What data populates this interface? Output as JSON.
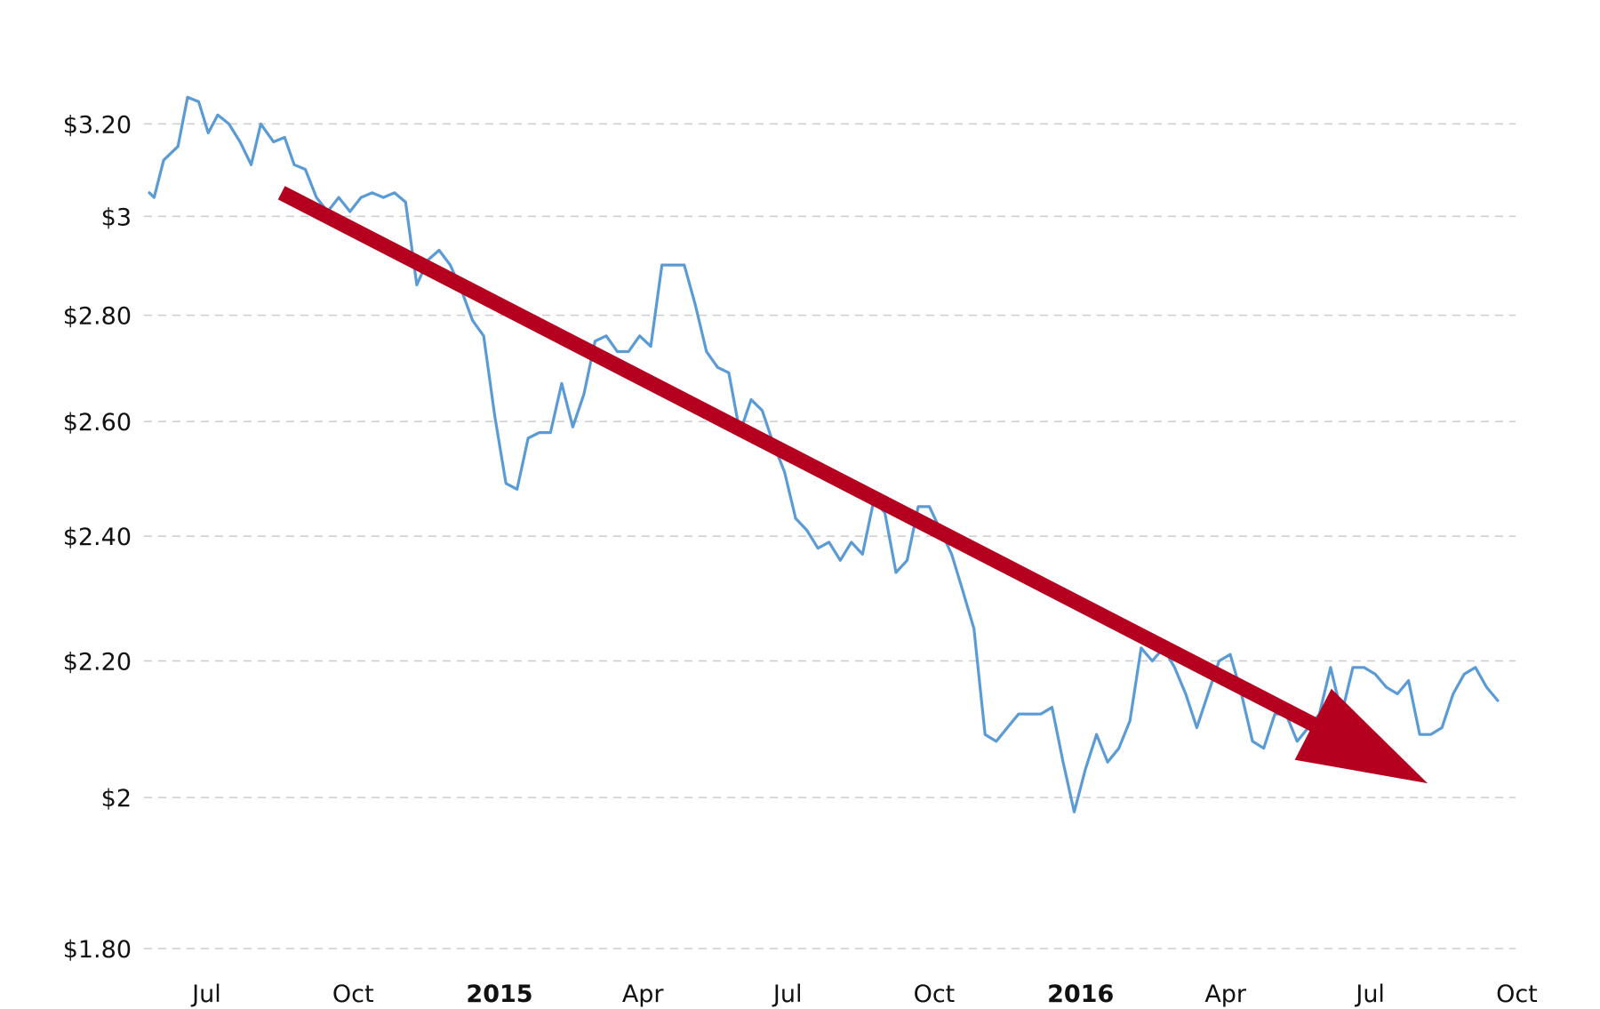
{
  "chart_data": {
    "type": "line",
    "title": "",
    "xlabel": "",
    "ylabel": "",
    "y_scale": "log",
    "ylim": [
      1.78,
      3.32
    ],
    "grid": true,
    "y_ticks": [
      {
        "value": 3.2,
        "label": "$3.20"
      },
      {
        "value": 3.0,
        "label": "$3"
      },
      {
        "value": 2.8,
        "label": "$2.80"
      },
      {
        "value": 2.6,
        "label": "$2.60"
      },
      {
        "value": 2.4,
        "label": "$2.40"
      },
      {
        "value": 2.2,
        "label": "$2.20"
      },
      {
        "value": 2.0,
        "label": "$2"
      },
      {
        "value": 1.8,
        "label": "$1.80"
      }
    ],
    "x_ticks": [
      {
        "date": "2014-07-01",
        "label": "Jul",
        "bold": false
      },
      {
        "date": "2014-10-01",
        "label": "Oct",
        "bold": false
      },
      {
        "date": "2015-01-01",
        "label": "2015",
        "bold": true
      },
      {
        "date": "2015-04-01",
        "label": "Apr",
        "bold": false
      },
      {
        "date": "2015-07-01",
        "label": "Jul",
        "bold": false
      },
      {
        "date": "2015-10-01",
        "label": "Oct",
        "bold": false
      },
      {
        "date": "2016-01-01",
        "label": "2016",
        "bold": true
      },
      {
        "date": "2016-04-01",
        "label": "Apr",
        "bold": false
      },
      {
        "date": "2016-07-01",
        "label": "Jul",
        "bold": false
      },
      {
        "date": "2016-10-01",
        "label": "Oct",
        "bold": false
      }
    ],
    "xlim": [
      "2014-05-26",
      "2016-10-03"
    ],
    "colors": {
      "line": "#5b9bd5",
      "arrow": "#b5001f",
      "grid": "#cccccc"
    },
    "series": [
      {
        "color": "#5b9bd5",
        "points": [
          [
            "2014-05-26",
            3.05
          ],
          [
            "2014-05-29",
            3.04
          ],
          [
            "2014-06-04",
            3.12
          ],
          [
            "2014-06-13",
            3.15
          ],
          [
            "2014-06-19",
            3.26
          ],
          [
            "2014-06-26",
            3.25
          ],
          [
            "2014-07-02",
            3.18
          ],
          [
            "2014-07-08",
            3.22
          ],
          [
            "2014-07-15",
            3.2
          ],
          [
            "2014-07-22",
            3.16
          ],
          [
            "2014-07-29",
            3.11
          ],
          [
            "2014-08-04",
            3.2
          ],
          [
            "2014-08-12",
            3.16
          ],
          [
            "2014-08-19",
            3.17
          ],
          [
            "2014-08-25",
            3.11
          ],
          [
            "2014-09-01",
            3.1
          ],
          [
            "2014-09-08",
            3.04
          ],
          [
            "2014-09-15",
            3.01
          ],
          [
            "2014-09-22",
            3.04
          ],
          [
            "2014-09-29",
            3.01
          ],
          [
            "2014-10-06",
            3.04
          ],
          [
            "2014-10-13",
            3.05
          ],
          [
            "2014-10-20",
            3.04
          ],
          [
            "2014-10-27",
            3.05
          ],
          [
            "2014-11-03",
            3.03
          ],
          [
            "2014-11-10",
            2.86
          ],
          [
            "2014-11-17",
            2.91
          ],
          [
            "2014-11-24",
            2.93
          ],
          [
            "2014-12-01",
            2.9
          ],
          [
            "2014-12-08",
            2.85
          ],
          [
            "2014-12-15",
            2.79
          ],
          [
            "2014-12-22",
            2.76
          ],
          [
            "2014-12-29",
            2.61
          ],
          [
            "2015-01-05",
            2.49
          ],
          [
            "2015-01-12",
            2.48
          ],
          [
            "2015-01-19",
            2.57
          ],
          [
            "2015-01-26",
            2.58
          ],
          [
            "2015-02-02",
            2.58
          ],
          [
            "2015-02-09",
            2.67
          ],
          [
            "2015-02-16",
            2.59
          ],
          [
            "2015-02-23",
            2.65
          ],
          [
            "2015-03-02",
            2.75
          ],
          [
            "2015-03-09",
            2.76
          ],
          [
            "2015-03-16",
            2.73
          ],
          [
            "2015-03-23",
            2.73
          ],
          [
            "2015-03-30",
            2.76
          ],
          [
            "2015-04-06",
            2.74
          ],
          [
            "2015-04-13",
            2.9
          ],
          [
            "2015-04-20",
            2.9
          ],
          [
            "2015-04-27",
            2.9
          ],
          [
            "2015-05-04",
            2.82
          ],
          [
            "2015-05-11",
            2.73
          ],
          [
            "2015-05-18",
            2.7
          ],
          [
            "2015-05-25",
            2.69
          ],
          [
            "2015-06-01",
            2.58
          ],
          [
            "2015-06-08",
            2.64
          ],
          [
            "2015-06-15",
            2.62
          ],
          [
            "2015-06-22",
            2.56
          ],
          [
            "2015-06-29",
            2.51
          ],
          [
            "2015-07-06",
            2.43
          ],
          [
            "2015-07-13",
            2.41
          ],
          [
            "2015-07-20",
            2.38
          ],
          [
            "2015-07-27",
            2.39
          ],
          [
            "2015-08-03",
            2.36
          ],
          [
            "2015-08-10",
            2.39
          ],
          [
            "2015-08-17",
            2.37
          ],
          [
            "2015-08-24",
            2.46
          ],
          [
            "2015-08-31",
            2.44
          ],
          [
            "2015-09-07",
            2.34
          ],
          [
            "2015-09-14",
            2.36
          ],
          [
            "2015-09-21",
            2.45
          ],
          [
            "2015-09-28",
            2.45
          ],
          [
            "2015-10-05",
            2.41
          ],
          [
            "2015-10-12",
            2.37
          ],
          [
            "2015-10-19",
            2.31
          ],
          [
            "2015-10-26",
            2.25
          ],
          [
            "2015-11-02",
            2.09
          ],
          [
            "2015-11-09",
            2.08
          ],
          [
            "2015-11-16",
            2.1
          ],
          [
            "2015-11-23",
            2.12
          ],
          [
            "2015-11-30",
            2.12
          ],
          [
            "2015-12-07",
            2.12
          ],
          [
            "2015-12-14",
            2.13
          ],
          [
            "2015-12-21",
            2.05
          ],
          [
            "2015-12-28",
            1.98
          ],
          [
            "2016-01-04",
            2.04
          ],
          [
            "2016-01-11",
            2.09
          ],
          [
            "2016-01-18",
            2.05
          ],
          [
            "2016-01-25",
            2.07
          ],
          [
            "2016-02-01",
            2.11
          ],
          [
            "2016-02-08",
            2.22
          ],
          [
            "2016-02-15",
            2.2
          ],
          [
            "2016-02-22",
            2.22
          ],
          [
            "2016-02-29",
            2.19
          ],
          [
            "2016-03-07",
            2.15
          ],
          [
            "2016-03-14",
            2.1
          ],
          [
            "2016-03-21",
            2.15
          ],
          [
            "2016-03-28",
            2.2
          ],
          [
            "2016-04-04",
            2.21
          ],
          [
            "2016-04-11",
            2.15
          ],
          [
            "2016-04-18",
            2.08
          ],
          [
            "2016-04-25",
            2.07
          ],
          [
            "2016-05-02",
            2.12
          ],
          [
            "2016-05-09",
            2.12
          ],
          [
            "2016-05-16",
            2.08
          ],
          [
            "2016-05-23",
            2.1
          ],
          [
            "2016-05-30",
            2.12
          ],
          [
            "2016-06-06",
            2.19
          ],
          [
            "2016-06-13",
            2.12
          ],
          [
            "2016-06-20",
            2.19
          ],
          [
            "2016-06-27",
            2.19
          ],
          [
            "2016-07-04",
            2.18
          ],
          [
            "2016-07-11",
            2.16
          ],
          [
            "2016-07-18",
            2.15
          ],
          [
            "2016-07-25",
            2.17
          ],
          [
            "2016-08-01",
            2.09
          ],
          [
            "2016-08-08",
            2.09
          ],
          [
            "2016-08-15",
            2.1
          ],
          [
            "2016-08-22",
            2.15
          ],
          [
            "2016-08-29",
            2.18
          ],
          [
            "2016-09-05",
            2.19
          ],
          [
            "2016-09-12",
            2.16
          ],
          [
            "2016-09-19",
            2.14
          ]
        ]
      }
    ],
    "annotations": [
      {
        "type": "trend-arrow",
        "color": "#b5001f",
        "from": [
          "2014-08-17",
          3.05
        ],
        "to": [
          "2016-08-06",
          2.02
        ]
      }
    ]
  }
}
